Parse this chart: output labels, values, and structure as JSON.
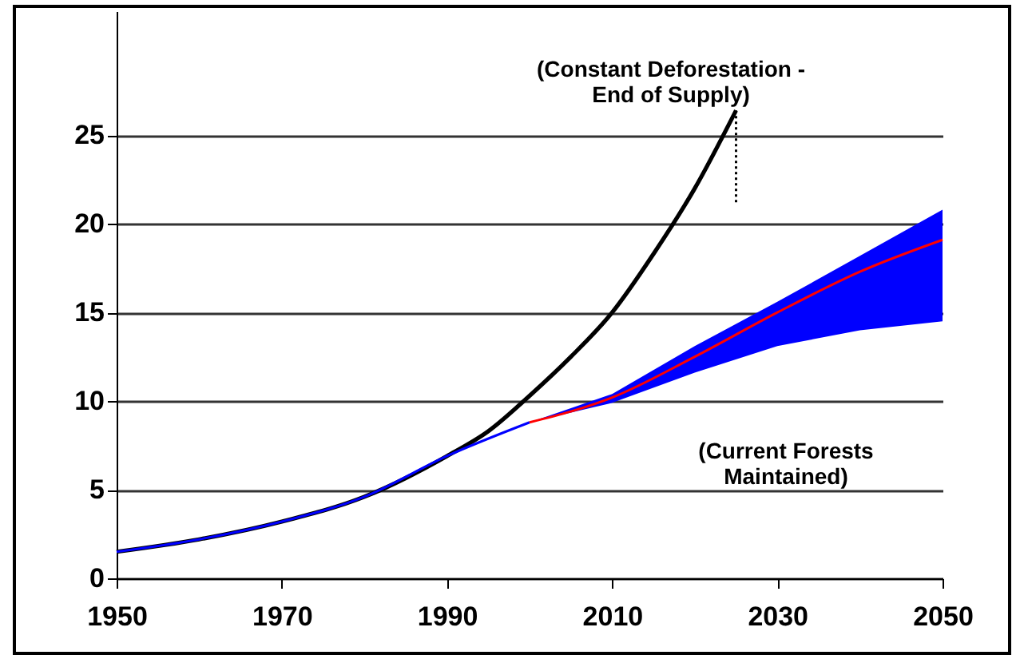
{
  "chart_data": {
    "type": "line",
    "xlim": [
      1950,
      2050
    ],
    "xticks": [
      1950,
      1970,
      1990,
      2010,
      2030,
      2050
    ],
    "ylim": [
      0,
      32
    ],
    "yticks": [
      0,
      5,
      10,
      15,
      20,
      25
    ],
    "grid": "y",
    "line_style": "solid",
    "series": [
      {
        "color": "#000000",
        "x": [
          1950,
          1960,
          1970,
          1980,
          1990,
          1995,
          2000,
          2005,
          2010,
          2015,
          2020,
          2025
        ],
        "values": [
          1.5,
          2.2,
          3.2,
          4.6,
          6.9,
          8.3,
          10.3,
          12.5,
          15,
          18.3,
          22,
          26.4
        ]
      },
      {
        "color": "#0000ff",
        "x": [
          1950,
          1960,
          1970,
          1980,
          1990,
          2000,
          2010,
          2020,
          2030,
          2040,
          2050
        ],
        "values": [
          1.5,
          2.2,
          3.2,
          4.6,
          6.9,
          8.8,
          null,
          null,
          null,
          null,
          null
        ],
        "lower": [
          null,
          null,
          null,
          null,
          null,
          8.8,
          9.9,
          11.6,
          13.1,
          14.0,
          14.5
        ],
        "upper": [
          null,
          null,
          null,
          null,
          null,
          8.8,
          10.4,
          13.1,
          15.6,
          18.2,
          20.8
        ]
      },
      {
        "color": "#ff0000",
        "x": [
          2000,
          2010,
          2020,
          2030,
          2040,
          2050
        ],
        "values": [
          8.8,
          10.2,
          12.5,
          15,
          17.3,
          19.1
        ]
      },
      {
        "color": "#000000",
        "line_style": "dotted",
        "x": [
          2025,
          2025
        ],
        "values": [
          26.4,
          21.2
        ]
      }
    ],
    "annotations": [
      "(Constant Deforestation -\nEnd of Supply)",
      "(Current Forests\nMaintained)"
    ]
  }
}
